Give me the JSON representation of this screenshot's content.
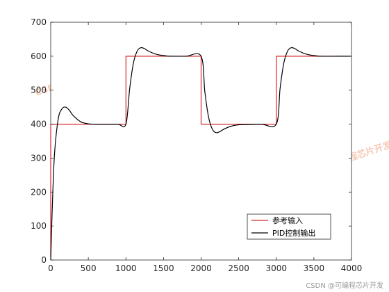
{
  "chart_data": {
    "type": "line",
    "title": "",
    "xlabel": "",
    "ylabel": "",
    "xlim": [
      0,
      4000
    ],
    "ylim": [
      0,
      700
    ],
    "xticks": [
      0,
      500,
      1000,
      1500,
      2000,
      2500,
      3000,
      3500,
      4000
    ],
    "yticks": [
      0,
      100,
      200,
      300,
      400,
      500,
      600,
      700
    ],
    "grid": false,
    "legend_position": "bottom-right",
    "series": [
      {
        "name": "参考输入",
        "color": "#d62728",
        "x": [
          0,
          0,
          1000,
          1000,
          2000,
          2000,
          3000,
          3000,
          4000
        ],
        "y": [
          0,
          400,
          400,
          600,
          600,
          400,
          400,
          600,
          600
        ]
      },
      {
        "name": "PID控制输出",
        "color": "#000000",
        "x": [
          0,
          20,
          50,
          100,
          150,
          200,
          250,
          300,
          400,
          500,
          600,
          700,
          800,
          900,
          1000,
          1050,
          1100,
          1150,
          1200,
          1250,
          1300,
          1400,
          1500,
          1600,
          1800,
          2000,
          2050,
          2100,
          2150,
          2200,
          2250,
          2300,
          2400,
          2500,
          2600,
          2800,
          3000,
          3050,
          3100,
          3150,
          3200,
          3250,
          3300,
          3400,
          3500,
          3600,
          3800,
          4000
        ],
        "y": [
          0,
          150,
          310,
          415,
          445,
          450,
          440,
          425,
          407,
          401,
          400,
          400,
          400,
          400,
          400,
          505,
          580,
          615,
          625,
          622,
          615,
          606,
          602,
          600,
          600,
          600,
          495,
          420,
          385,
          375,
          378,
          385,
          394,
          398,
          399,
          400,
          400,
          505,
          580,
          615,
          625,
          622,
          615,
          606,
          602,
          600,
          600,
          600
        ]
      }
    ],
    "watermarks": [
      "CSDN博客:可编程芯片开发",
      "CSDN博客:可编程芯片开发",
      "CSDN博客:可编程芯片开发",
      "CSDN博客:可编程芯片开发",
      "CSDN博客:可编程芯片开发"
    ],
    "credit": "CSDN @可编程芯片开发"
  }
}
